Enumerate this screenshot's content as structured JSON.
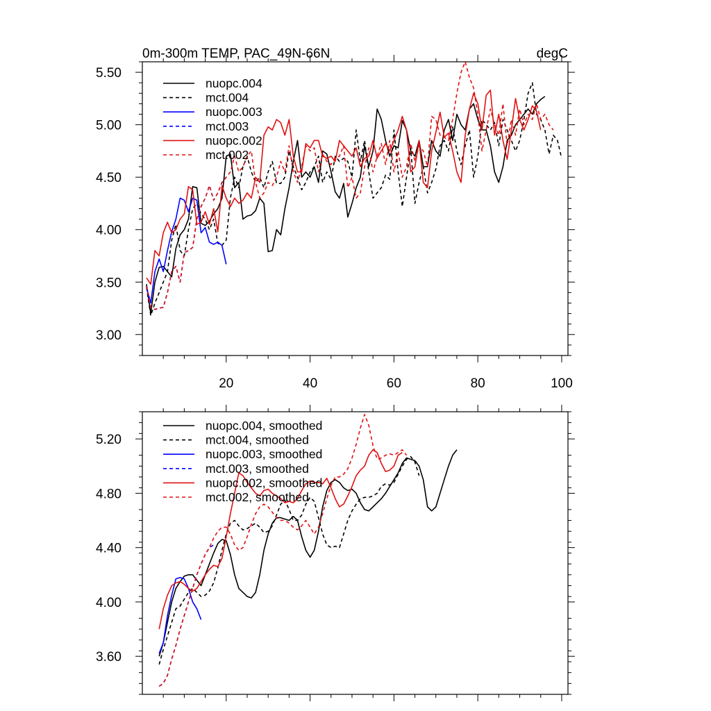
{
  "chart_data": [
    {
      "type": "line",
      "title_left": "0m-300m TEMP, PAC_49N-66N",
      "title_right": "degC",
      "xlabel": "",
      "ylabel": "",
      "xlim": [
        0,
        101.5
      ],
      "ylim": [
        2.8,
        5.6
      ],
      "xticks": [
        20,
        40,
        60,
        80,
        100
      ],
      "xtick_labels": [
        "20",
        "40",
        "60",
        "80",
        "100"
      ],
      "yticks": [
        3.0,
        3.5,
        4.0,
        4.5,
        5.0,
        5.5
      ],
      "ytick_labels": [
        "3.00",
        "3.50",
        "4.00",
        "4.50",
        "5.00",
        "5.50"
      ],
      "legend_position": "top-left",
      "series": [
        {
          "name": "nuopc.004",
          "color": "#000000",
          "dash": "solid",
          "x_start": 1,
          "values": [
            3.48,
            3.2,
            3.5,
            3.64,
            3.65,
            3.6,
            3.55,
            3.82,
            3.95,
            4.0,
            4.1,
            4.41,
            4.4,
            4.06,
            4.04,
            4.08,
            4.15,
            4.2,
            4.3,
            4.7,
            4.72,
            4.4,
            4.45,
            4.1,
            4.13,
            4.14,
            4.18,
            4.3,
            4.25,
            3.79,
            3.8,
            4.0,
            3.95,
            4.2,
            4.4,
            4.65,
            4.85,
            4.5,
            4.55,
            4.5,
            4.6,
            4.45,
            4.75,
            4.72,
            4.55,
            4.36,
            4.3,
            4.44,
            4.12,
            4.25,
            4.4,
            4.5,
            4.8,
            4.6,
            4.75,
            5.15,
            5.05,
            4.85,
            4.7,
            4.8,
            4.78,
            5.04,
            4.95,
            4.75,
            4.7,
            4.85,
            4.6,
            4.6,
            4.85,
            4.75,
            4.7,
            4.95,
            5.05,
            4.85,
            5.1,
            5.0,
            4.95,
            5.15,
            5.2,
            5.05,
            4.95,
            4.95,
            4.8,
            4.55,
            4.45,
            4.6,
            4.85,
            4.9,
            5.0,
            5.05,
            5.1,
            5.15,
            5.1,
            5.2,
            5.24,
            5.27
          ]
        },
        {
          "name": "mct.004",
          "color": "#000000",
          "dash": "dash",
          "x_start": 1,
          "values": [
            3.45,
            3.18,
            3.3,
            3.4,
            3.5,
            3.6,
            3.9,
            4.05,
            3.8,
            3.75,
            4.0,
            4.2,
            4.25,
            4.15,
            4.1,
            4.0,
            4.1,
            3.87,
            3.85,
            3.9,
            4.3,
            4.5,
            4.4,
            4.6,
            4.7,
            4.55,
            4.45,
            4.5,
            4.4,
            4.55,
            4.65,
            4.44,
            4.44,
            4.5,
            4.75,
            4.6,
            4.5,
            4.38,
            4.45,
            4.55,
            4.6,
            4.7,
            4.45,
            4.55,
            4.48,
            4.7,
            4.65,
            4.68,
            4.65,
            4.5,
            4.95,
            4.65,
            4.85,
            4.55,
            4.3,
            4.35,
            4.4,
            4.52,
            4.48,
            4.95,
            4.55,
            4.22,
            4.5,
            4.78,
            4.25,
            4.45,
            4.6,
            4.35,
            4.45,
            4.58,
            4.8,
            4.85,
            4.75,
            4.98,
            4.75,
            4.62,
            4.8,
            4.95,
            4.5,
            4.7,
            5.05,
            5.0,
            4.95,
            5.02,
            4.8,
            5.05,
            4.95,
            4.85,
            4.75,
            4.85,
            5.05,
            5.3,
            5.4,
            5.1,
            5.05,
            4.95,
            4.72,
            4.9,
            4.85,
            4.68
          ]
        },
        {
          "name": "nuopc.003",
          "color": "#0000ff",
          "dash": "solid",
          "x_start": 1,
          "values": [
            3.45,
            3.3,
            3.6,
            3.72,
            3.6,
            3.8,
            3.98,
            4.1,
            4.3,
            4.28,
            4.17,
            4.3,
            4.28,
            3.97,
            4.02,
            3.88,
            3.86,
            3.88,
            3.85,
            3.67
          ]
        },
        {
          "name": "mct.003",
          "color": "#0000ff",
          "dash": "dash",
          "x_start": 1,
          "values": [
            3.46,
            3.26,
            3.24,
            3.25,
            3.26,
            3.4,
            3.6,
            3.65,
            3.5,
            3.78,
            3.8,
            3.83,
            4.1,
            4.22,
            4.3,
            4.42,
            4.28,
            4.35,
            4.45,
            4.5
          ]
        },
        {
          "name": "nuopc.002",
          "color": "#e01010",
          "dash": "solid",
          "x_start": 1,
          "values": [
            3.54,
            3.48,
            3.8,
            3.75,
            3.97,
            4.07,
            3.97,
            4.0,
            4.1,
            4.15,
            4.41,
            4.38,
            4.05,
            4.07,
            4.17,
            4.05,
            4.2,
            3.98,
            4.42,
            4.3,
            4.22,
            4.3,
            4.25,
            4.28,
            4.35,
            4.3,
            4.5,
            4.45,
            4.9,
            4.98,
            4.95,
            5.05,
            5.02,
            4.9,
            5.05,
            4.7,
            4.55,
            4.55,
            4.82,
            4.78,
            4.85,
            4.85,
            4.7,
            4.68,
            4.7,
            4.65,
            4.85,
            4.8,
            4.75,
            4.7,
            4.78,
            4.6,
            4.68,
            4.7,
            4.85,
            4.68,
            4.75,
            4.82,
            4.75,
            4.85,
            4.95,
            5.08,
            4.95,
            4.55,
            4.6,
            4.85,
            4.45,
            4.4,
            4.75,
            4.93,
            5.12,
            4.88,
            4.92,
            4.75,
            4.55,
            4.45,
            4.9,
            5.15,
            5.3,
            5.2,
            4.95,
            5.28,
            5.33,
            4.9,
            5.1,
            4.85,
            4.67,
            4.95,
            5.25,
            5.05,
            4.95,
            5.05,
            5.18,
            5.13,
            4.95
          ]
        },
        {
          "name": "mct.002",
          "color": "#e01010",
          "dash": "dash",
          "x_start": 1,
          "values": [
            3.46,
            3.26,
            3.24,
            3.25,
            3.26,
            3.4,
            3.6,
            3.65,
            3.5,
            3.78,
            3.8,
            3.83,
            4.1,
            4.22,
            4.3,
            4.42,
            4.28,
            4.35,
            4.45,
            4.5,
            4.55,
            4.7,
            4.55,
            4.6,
            4.7,
            4.75,
            4.45,
            4.3,
            4.35,
            4.45,
            4.42,
            4.5,
            4.65,
            4.55,
            4.8,
            4.55,
            4.45,
            4.6,
            4.8,
            4.75,
            4.78,
            4.55,
            4.72,
            4.65,
            4.62,
            4.68,
            4.7,
            4.8,
            4.4,
            4.5,
            4.3,
            4.35,
            4.6,
            4.78,
            4.55,
            4.7,
            4.82,
            4.62,
            4.85,
            4.55,
            4.75,
            4.5,
            4.6,
            4.82,
            4.65,
            4.8,
            4.75,
            4.6,
            5.08,
            5.05,
            4.9,
            4.88,
            4.85,
            5.05,
            5.3,
            5.5,
            5.6,
            5.45,
            5.35,
            5.1,
            4.75,
            4.95,
            5.15,
            5.0,
            4.9,
            5.2,
            4.8,
            5.05,
            4.9,
            5.15,
            5.0,
            5.1,
            5.05,
            5.2,
            5.05,
            5.1,
            5.0,
            4.95
          ]
        }
      ]
    },
    {
      "type": "line",
      "title_left": "",
      "title_right": "",
      "xlabel": "",
      "ylabel": "",
      "xlim": [
        0,
        101.5
      ],
      "ylim": [
        3.32,
        5.4
      ],
      "xticks": [
        20,
        40,
        60,
        80,
        100
      ],
      "xtick_labels": [],
      "yticks": [
        3.6,
        4.0,
        4.4,
        4.8,
        5.2
      ],
      "ytick_labels": [
        "3.60",
        "4.00",
        "4.40",
        "4.80",
        "5.20"
      ],
      "legend_position": "top-left",
      "series": [
        {
          "name": "nuopc.004, smoothed",
          "color": "#000000",
          "dash": "solid",
          "x_start": 4,
          "values": [
            3.6,
            3.7,
            3.85,
            4.0,
            4.1,
            4.15,
            4.19,
            4.2,
            4.2,
            4.16,
            4.12,
            4.2,
            4.28,
            4.36,
            4.43,
            4.46,
            4.45,
            4.35,
            4.2,
            4.1,
            4.07,
            4.04,
            4.03,
            4.07,
            4.2,
            4.38,
            4.5,
            4.58,
            4.62,
            4.62,
            4.61,
            4.6,
            4.63,
            4.6,
            4.48,
            4.38,
            4.33,
            4.38,
            4.52,
            4.7,
            4.82,
            4.88,
            4.9,
            4.88,
            4.84,
            4.82,
            4.83,
            4.8,
            4.73,
            4.68,
            4.67,
            4.7,
            4.73,
            4.76,
            4.8,
            4.85,
            4.9,
            4.95,
            5.02,
            5.06,
            5.05,
            5.04,
            5.0,
            4.9,
            4.7,
            4.67,
            4.7,
            4.8,
            4.9,
            5.0,
            5.08,
            5.12
          ]
        },
        {
          "name": "mct.004, smoothed",
          "color": "#000000",
          "dash": "dash",
          "x_start": 4,
          "values": [
            3.54,
            3.65,
            3.75,
            3.85,
            3.95,
            3.97,
            4.02,
            4.07,
            4.1,
            4.07,
            4.04,
            4.05,
            4.08,
            4.14,
            4.25,
            4.38,
            4.5,
            4.58,
            4.6,
            4.56,
            4.53,
            4.54,
            4.56,
            4.58,
            4.55,
            4.51,
            4.52,
            4.56,
            4.64,
            4.72,
            4.75,
            4.68,
            4.6,
            4.6,
            4.64,
            4.72,
            4.77,
            4.74,
            4.62,
            4.5,
            4.42,
            4.4,
            4.41,
            4.4,
            4.5,
            4.6,
            4.67,
            4.72,
            4.76,
            4.77,
            4.77,
            4.78,
            4.8,
            4.85,
            4.87,
            4.86,
            4.88,
            4.94,
            5.0,
            5.05,
            5.07,
            5.03,
            4.93
          ]
        },
        {
          "name": "nuopc.003, smoothed",
          "color": "#0000ff",
          "dash": "solid",
          "x_start": 4,
          "values": [
            3.62,
            3.7,
            3.9,
            4.05,
            4.17,
            4.18,
            4.17,
            4.1,
            4.0,
            3.95,
            3.87
          ]
        },
        {
          "name": "mct.003, smoothed",
          "color": "#0000ff",
          "dash": "dash",
          "x_start": 4,
          "values": [
            3.38,
            3.4,
            3.46,
            3.58,
            3.68,
            3.8,
            3.9,
            4.0,
            4.1,
            4.2,
            4.28,
            4.35,
            4.4,
            4.42
          ]
        },
        {
          "name": "nuopc.002, smoothed",
          "color": "#e01010",
          "dash": "solid",
          "x_start": 4,
          "values": [
            3.8,
            3.95,
            4.05,
            4.12,
            4.14,
            4.15,
            4.13,
            4.1,
            4.08,
            4.1,
            4.15,
            4.2,
            4.24,
            4.27,
            4.26,
            4.32,
            4.48,
            4.65,
            4.8,
            4.95,
            4.93,
            4.88,
            4.84,
            4.8,
            4.78,
            4.82,
            4.83,
            4.8,
            4.78,
            4.76,
            4.73,
            4.74,
            4.73,
            4.76,
            4.82,
            4.87,
            4.89,
            4.88,
            4.88,
            4.87,
            4.91,
            4.84,
            4.76,
            4.7,
            4.72,
            4.78,
            4.85,
            4.93,
            4.97,
            5.0,
            5.08,
            5.12,
            5.1,
            5.02,
            4.96,
            4.97,
            5.0,
            5.08,
            5.1
          ]
        },
        {
          "name": "mct.002, smoothed",
          "color": "#e01010",
          "dash": "dash",
          "x_start": 4,
          "values": [
            3.38,
            3.4,
            3.46,
            3.58,
            3.68,
            3.8,
            3.9,
            4.0,
            4.1,
            4.2,
            4.28,
            4.35,
            4.4,
            4.47,
            4.52,
            4.55,
            4.55,
            4.5,
            4.42,
            4.38,
            4.4,
            4.48,
            4.57,
            4.65,
            4.7,
            4.72,
            4.7,
            4.66,
            4.62,
            4.6,
            4.6,
            4.58,
            4.55,
            4.53,
            4.56,
            4.6,
            4.55,
            4.5,
            4.55,
            4.65,
            4.76,
            4.86,
            4.92,
            4.92,
            4.94,
            4.98,
            5.06,
            5.16,
            5.28,
            5.38,
            5.3,
            5.15,
            5.05,
            5.06,
            5.08,
            5.09,
            5.08,
            5.1,
            5.12,
            5.08
          ]
        }
      ]
    }
  ]
}
